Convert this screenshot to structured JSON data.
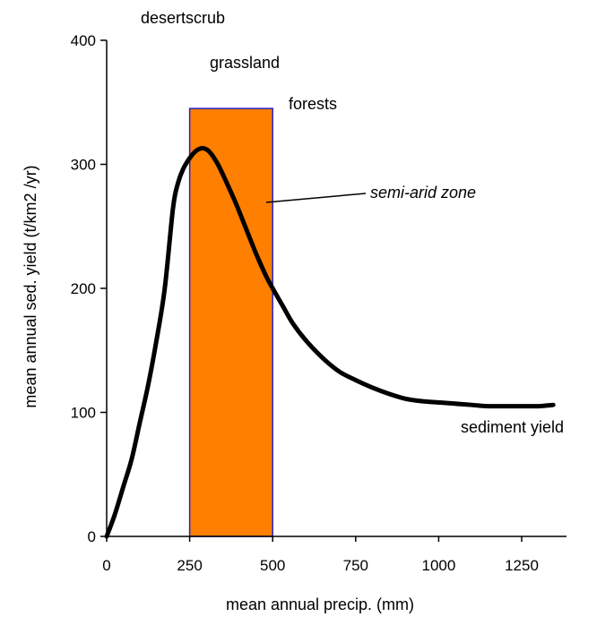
{
  "colors": {
    "zone_fill": "#FF7F00",
    "zone_border": "#2222CC",
    "curve": "#000000",
    "axis": "#000000",
    "background": "#FFFFFF"
  },
  "chart_data": {
    "type": "line",
    "title": "",
    "xlabel": "mean annual precip. (mm)",
    "ylabel": "mean annual sed. yield (t/km2 /yr)",
    "xlim": [
      0,
      1400
    ],
    "ylim": [
      0,
      400
    ],
    "x_ticks": [
      0,
      250,
      500,
      750,
      1000,
      1250
    ],
    "x_tick_labels": [
      "0",
      "250",
      "500",
      "750",
      "1000",
      "1250"
    ],
    "y_ticks": [
      0,
      100,
      200,
      300,
      400
    ],
    "y_tick_labels": [
      "0",
      "100",
      "200",
      "300",
      "400"
    ],
    "grid": false,
    "series": [
      {
        "name": "sediment yield",
        "x": [
          0,
          25,
          50,
          75,
          100,
          125,
          150,
          175,
          200,
          215,
          230,
          250,
          270,
          290,
          310,
          335,
          360,
          390,
          420,
          450,
          480,
          500,
          530,
          560,
          600,
          650,
          700,
          750,
          800,
          850,
          900,
          950,
          1000,
          1050,
          1100,
          1150,
          1200,
          1250,
          1300,
          1345
        ],
        "y": [
          0,
          18,
          40,
          62,
          92,
          122,
          158,
          200,
          265,
          285,
          296,
          305,
          311,
          313,
          310,
          300,
          286,
          268,
          248,
          228,
          210,
          200,
          186,
          172,
          158,
          144,
          133,
          126,
          120,
          115,
          111,
          109,
          108,
          107,
          106,
          105,
          105,
          105,
          105,
          106
        ]
      }
    ],
    "highlight_band": {
      "x_start": 250,
      "x_end": 500,
      "y_top": 345
    },
    "annotations": {
      "desertscrub": "desertscrub",
      "grassland": "grassland",
      "forests": "forests",
      "semi_arid_zone": "semi-arid zone",
      "sediment_yield": "sediment yield"
    }
  }
}
